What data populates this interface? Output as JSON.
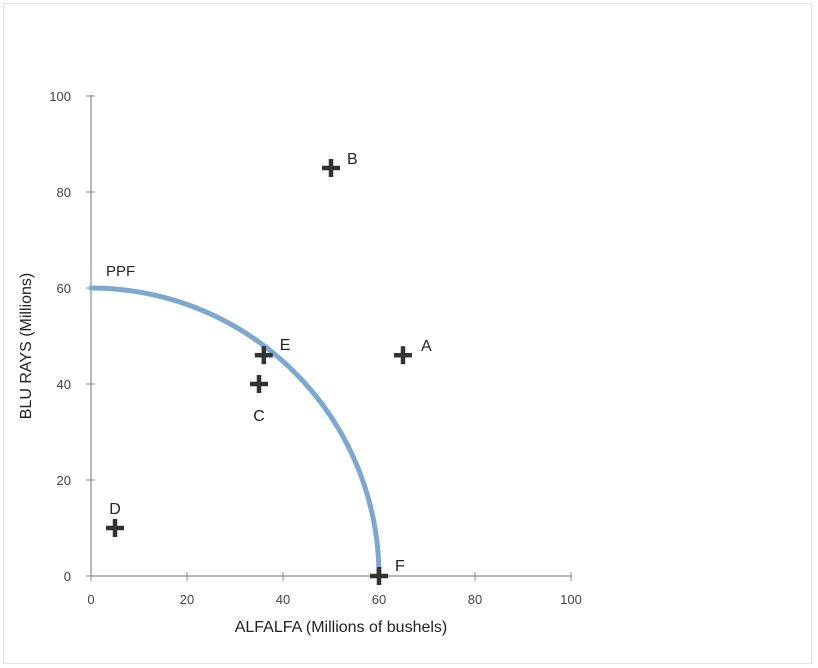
{
  "chart_data": {
    "type": "scatter",
    "title": "",
    "xlabel": "ALFALFA (Millions of bushels)",
    "ylabel": "BLU RAYS (Millions)",
    "xlim": [
      0,
      100
    ],
    "ylim": [
      0,
      100
    ],
    "x_ticks": [
      0,
      20,
      40,
      60,
      80,
      100
    ],
    "y_ticks": [
      0,
      20,
      40,
      60,
      80,
      100
    ],
    "grid": false,
    "curve": {
      "name": "PPF",
      "color": "#7ba7d1",
      "x_intercept": 60,
      "y_intercept": 60,
      "points": [
        [
          0,
          60
        ],
        [
          10,
          59.2
        ],
        [
          20,
          56.6
        ],
        [
          30,
          52
        ],
        [
          36,
          48
        ],
        [
          45,
          39.7
        ],
        [
          52,
          29.9
        ],
        [
          56,
          21.5
        ],
        [
          58.5,
          13.3
        ],
        [
          60,
          0
        ]
      ]
    },
    "points": [
      {
        "label": "A",
        "x": 65,
        "y": 46
      },
      {
        "label": "B",
        "x": 50,
        "y": 85
      },
      {
        "label": "C",
        "x": 35,
        "y": 40
      },
      {
        "label": "D",
        "x": 5,
        "y": 10
      },
      {
        "label": "E",
        "x": 36,
        "y": 46
      },
      {
        "label": "F",
        "x": 60,
        "y": 0
      }
    ],
    "marker_color": "#333333"
  }
}
